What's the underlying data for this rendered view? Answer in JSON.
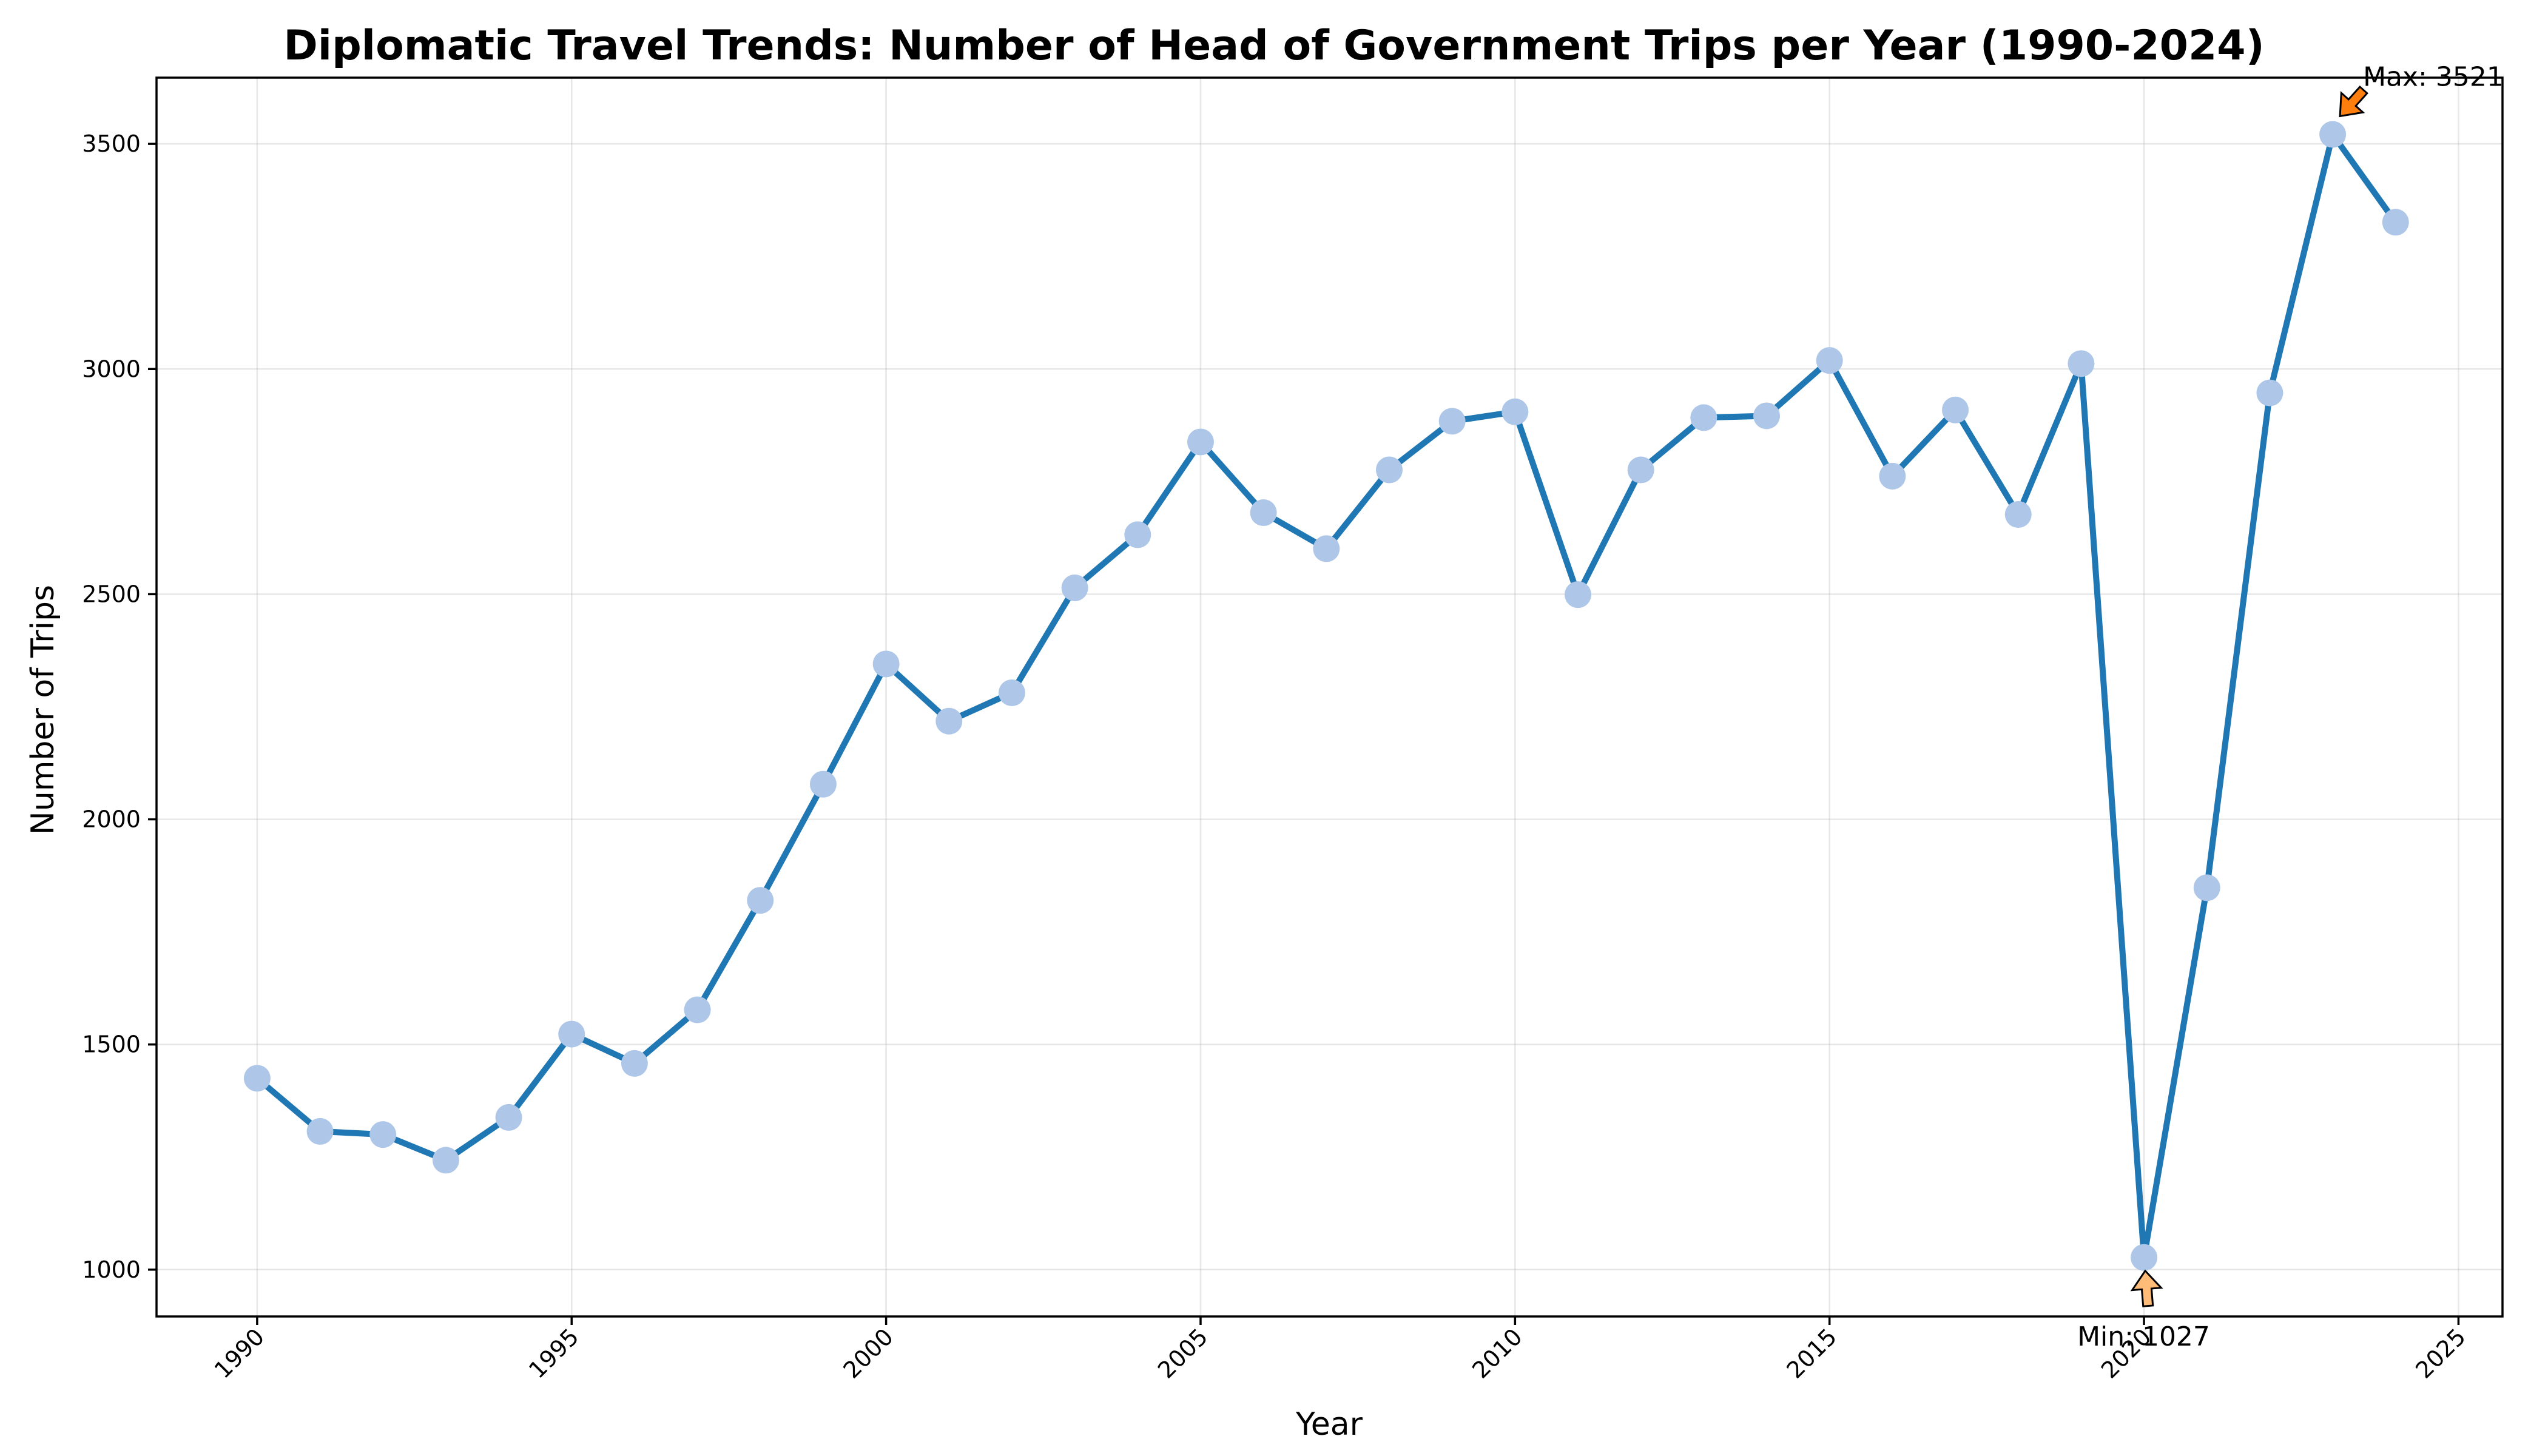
{
  "chart_data": {
    "type": "line",
    "title": "Diplomatic Travel Trends: Number of Head of Government Trips per Year (1990-2024)",
    "xlabel": "Year",
    "ylabel": "Number of Trips",
    "xlim": [
      1988.4,
      2025.7
    ],
    "ylim": [
      896,
      3647
    ],
    "xticks": [
      1990,
      1995,
      2000,
      2005,
      2010,
      2015,
      2020,
      2025
    ],
    "yticks": [
      1000,
      1500,
      2000,
      2500,
      3000,
      3500
    ],
    "grid": true,
    "line_color": "#1f77b4",
    "marker_color": "#aec7e8",
    "series": [
      {
        "x": [
          1990,
          1991,
          1992,
          1993,
          1994,
          1995,
          1996,
          1997,
          1998,
          1999,
          2000,
          2001,
          2002,
          2003,
          2004,
          2005,
          2006,
          2007,
          2008,
          2009,
          2010,
          2011,
          2012,
          2013,
          2014,
          2015,
          2016,
          2017,
          2018,
          2019,
          2020,
          2021,
          2022,
          2023,
          2024
        ],
        "values": [
          1425,
          1307,
          1300,
          1243,
          1338,
          1523,
          1458,
          1577,
          1820,
          2078,
          2345,
          2218,
          2281,
          2514,
          2632,
          2838,
          2681,
          2601,
          2776,
          2884,
          2905,
          2499,
          2776,
          2892,
          2896,
          3019,
          2762,
          2909,
          2677,
          3012,
          1027,
          1848,
          2947,
          3521,
          3326
        ]
      }
    ],
    "annotations": [
      {
        "text": "Max: 3521",
        "x": 2023,
        "y": 3521,
        "arrow_color": "#ff7f0e"
      },
      {
        "text": "Min: 1027",
        "x": 2020,
        "y": 1027,
        "arrow_color": "#ffbb78"
      }
    ]
  }
}
